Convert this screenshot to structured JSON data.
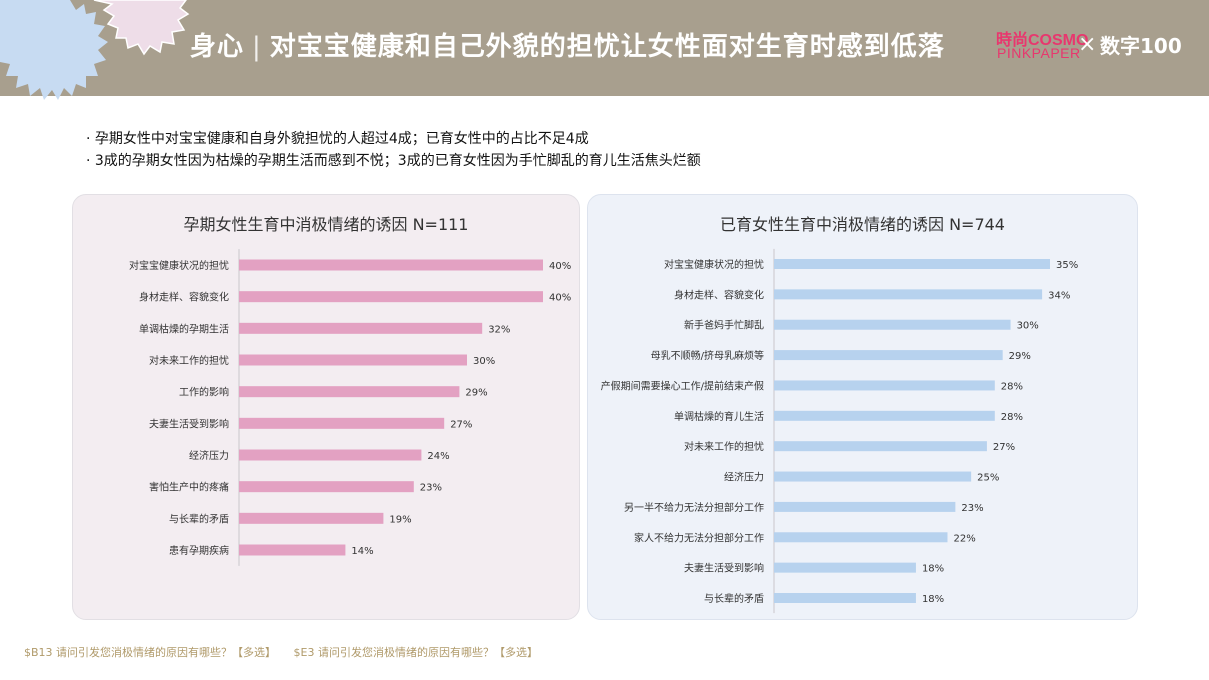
{
  "header": {
    "title_main": "身心",
    "title_sep": "|",
    "title_sub": "对宝宝健康和自己外貌的担忧让女性面对生育时感到低落",
    "logo_cosmo": "時尚COSMO",
    "logo_pinkpaper": "PINKPAPER",
    "logo_x": "×",
    "logo_partner": "数字100"
  },
  "bullets": [
    "· 孕期女性中对宝宝健康和自身外貌担忧的人超过4成；已育女性中的占比不足4成",
    "· 3成的孕期女性因为枯燥的孕期生活而感到不悦；3成的已育女性因为手忙脚乱的育儿生活焦头烂额"
  ],
  "colors": {
    "header_bg": "#a89f8e",
    "left_bar": "#e3a1c2",
    "right_bar": "#b7d2ee",
    "footer_text": "#b09a6a"
  },
  "chart_data": [
    {
      "type": "bar",
      "orientation": "horizontal",
      "title": "孕期女性生育中消极情绪的诱因 N=111",
      "categories": [
        "对宝宝健康状况的担忧",
        "身材走样、容貌变化",
        "单调枯燥的孕期生活",
        "对未来工作的担忧",
        "工作的影响",
        "夫妻生活受到影响",
        "经济压力",
        "害怕生产中的疼痛",
        "与长辈的矛盾",
        "患有孕期疾病"
      ],
      "values": [
        40,
        40,
        32,
        30,
        29,
        27,
        24,
        23,
        19,
        14
      ],
      "labels": [
        "40%",
        "40%",
        "32%",
        "30%",
        "29%",
        "27%",
        "24%",
        "23%",
        "19%",
        "14%"
      ],
      "unit": "%",
      "xlim": [
        0,
        40
      ]
    },
    {
      "type": "bar",
      "orientation": "horizontal",
      "title": "已育女性生育中消极情绪的诱因 N=744",
      "categories": [
        "对宝宝健康状况的担忧",
        "身材走样、容貌变化",
        "新手爸妈手忙脚乱",
        "母乳不顺畅/挤母乳麻烦等",
        "产假期间需要操心工作/提前结束产假",
        "单调枯燥的育儿生活",
        "对未来工作的担忧",
        "经济压力",
        "另一半不给力无法分担部分工作",
        "家人不给力无法分担部分工作",
        "夫妻生活受到影响",
        "与长辈的矛盾"
      ],
      "values": [
        35,
        34,
        30,
        29,
        28,
        28,
        27,
        25,
        23,
        22,
        18,
        18
      ],
      "labels": [
        "35%",
        "34%",
        "30%",
        "29%",
        "28%",
        "28%",
        "27%",
        "25%",
        "23%",
        "22%",
        "18%",
        "18%"
      ],
      "unit": "%",
      "xlim": [
        0,
        35
      ]
    }
  ],
  "footer": {
    "note_left": "$B13 请问引发您消极情绪的原因有哪些？【多选】",
    "note_right": "$E3 请问引发您消极情绪的原因有哪些？【多选】"
  }
}
